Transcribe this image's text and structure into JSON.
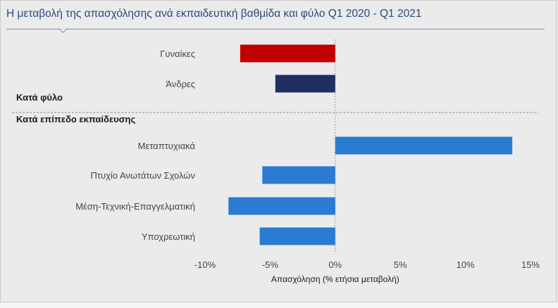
{
  "title": "Η μεταβολή της απασχόλησης ανά εκπαιδευτική βαθμίδα και φύλο Q1 2020 - Q1 2021",
  "colors": {
    "women": "#c00000",
    "men": "#1f2f63",
    "education": "#2a7bd1",
    "text": "#444444"
  },
  "chart_data": {
    "type": "bar",
    "orientation": "horizontal",
    "title": "Η μεταβολή της απασχόλησης ανά εκπαιδευτική βαθμίδα και φύλο Q1 2020 - Q1 2021",
    "xlabel": "Απασχόληση (% ετήσια μεταβολή)",
    "ylabel": "",
    "xlim": [
      -10,
      15
    ],
    "xticks": [
      "-10%",
      "-5%",
      "0%",
      "5%",
      "10%",
      "15%"
    ],
    "xtick_values": [
      -10,
      -5,
      0,
      5,
      10,
      15
    ],
    "grid": false,
    "legend": "none",
    "groups": [
      {
        "heading": "Κατά φύλο",
        "categories": [
          "Γυναίκες",
          "Άνδρες"
        ],
        "values": [
          -7.3,
          -4.6
        ],
        "colors": [
          "#c00000",
          "#1f2f63"
        ]
      },
      {
        "heading": "Κατά επίπεδο εκπαίδευσης",
        "categories": [
          "Μεταπτυχιακά",
          "Πτυχίο Ανωτάτων  Σχολών",
          "Μέση-Τεχνική-Επαγγελματική",
          "Υποχρεωτική"
        ],
        "values": [
          13.6,
          -5.6,
          -8.2,
          -5.8
        ],
        "colors": [
          "#2a7bd1",
          "#2a7bd1",
          "#2a7bd1",
          "#2a7bd1"
        ]
      }
    ]
  }
}
